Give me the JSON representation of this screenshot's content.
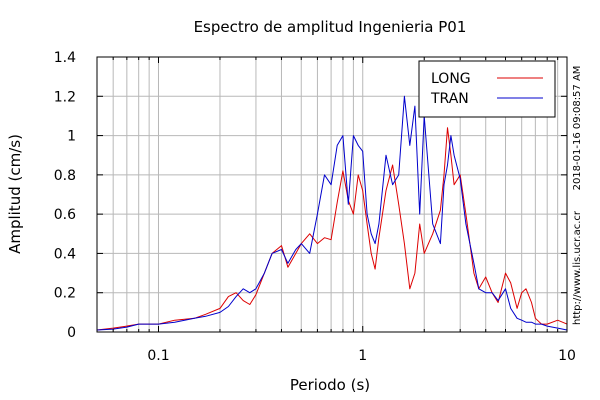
{
  "chart_data": {
    "type": "line",
    "title": "Espectro de amplitud Ingenieria P01",
    "xlabel": "Periodo (s)",
    "ylabel": "Amplitud (cm/s)",
    "xscale": "log",
    "xlim": [
      0.05,
      10
    ],
    "ylim": [
      0,
      1.4
    ],
    "xticks": [
      {
        "v": 0.1,
        "label": "0.1"
      },
      {
        "v": 1,
        "label": "1"
      },
      {
        "v": 10,
        "label": "10"
      }
    ],
    "yticks": [
      {
        "v": 0,
        "label": "0"
      },
      {
        "v": 0.2,
        "label": "0.2"
      },
      {
        "v": 0.4,
        "label": "0.4"
      },
      {
        "v": 0.6,
        "label": "0.6"
      },
      {
        "v": 0.8,
        "label": "0.8"
      },
      {
        "v": 1.0,
        "label": "1"
      },
      {
        "v": 1.2,
        "label": "1.2"
      },
      {
        "v": 1.4,
        "label": "1.4"
      }
    ],
    "grid": true,
    "legend_position": "top-right",
    "series": [
      {
        "name": "LONG",
        "color": "#dd0000",
        "x": [
          0.05,
          0.06,
          0.07,
          0.08,
          0.1,
          0.12,
          0.15,
          0.17,
          0.2,
          0.22,
          0.24,
          0.26,
          0.28,
          0.3,
          0.33,
          0.36,
          0.4,
          0.43,
          0.47,
          0.5,
          0.55,
          0.6,
          0.65,
          0.7,
          0.75,
          0.8,
          0.85,
          0.9,
          0.95,
          1.0,
          1.05,
          1.1,
          1.15,
          1.2,
          1.3,
          1.4,
          1.5,
          1.6,
          1.7,
          1.8,
          1.9,
          2.0,
          2.2,
          2.4,
          2.5,
          2.6,
          2.7,
          2.8,
          3.0,
          3.2,
          3.5,
          3.7,
          4.0,
          4.3,
          4.6,
          5.0,
          5.3,
          5.7,
          6.0,
          6.3,
          6.7,
          7.0,
          7.5,
          8.0,
          9.0,
          10.0
        ],
        "y": [
          0.01,
          0.02,
          0.03,
          0.04,
          0.04,
          0.06,
          0.07,
          0.09,
          0.12,
          0.18,
          0.2,
          0.16,
          0.14,
          0.19,
          0.3,
          0.4,
          0.44,
          0.33,
          0.4,
          0.45,
          0.5,
          0.45,
          0.48,
          0.47,
          0.66,
          0.82,
          0.67,
          0.6,
          0.8,
          0.72,
          0.55,
          0.4,
          0.32,
          0.48,
          0.72,
          0.85,
          0.65,
          0.45,
          0.22,
          0.3,
          0.55,
          0.4,
          0.5,
          0.62,
          0.8,
          1.04,
          0.9,
          0.75,
          0.8,
          0.6,
          0.3,
          0.22,
          0.28,
          0.2,
          0.15,
          0.3,
          0.25,
          0.12,
          0.2,
          0.22,
          0.15,
          0.07,
          0.04,
          0.04,
          0.06,
          0.04
        ]
      },
      {
        "name": "TRAN",
        "color": "#0000cc",
        "x": [
          0.05,
          0.06,
          0.07,
          0.08,
          0.1,
          0.12,
          0.15,
          0.17,
          0.2,
          0.22,
          0.24,
          0.26,
          0.28,
          0.3,
          0.33,
          0.36,
          0.4,
          0.43,
          0.47,
          0.5,
          0.55,
          0.6,
          0.65,
          0.7,
          0.75,
          0.8,
          0.85,
          0.9,
          0.95,
          1.0,
          1.05,
          1.1,
          1.15,
          1.2,
          1.3,
          1.4,
          1.5,
          1.6,
          1.7,
          1.8,
          1.9,
          2.0,
          2.2,
          2.4,
          2.5,
          2.6,
          2.7,
          2.8,
          3.0,
          3.2,
          3.5,
          3.7,
          4.0,
          4.3,
          4.6,
          5.0,
          5.3,
          5.7,
          6.0,
          6.3,
          6.7,
          7.0,
          7.5,
          8.0,
          9.0,
          10.0
        ],
        "y": [
          0.01,
          0.015,
          0.025,
          0.04,
          0.04,
          0.05,
          0.07,
          0.08,
          0.1,
          0.13,
          0.18,
          0.22,
          0.2,
          0.22,
          0.3,
          0.4,
          0.42,
          0.35,
          0.42,
          0.45,
          0.4,
          0.6,
          0.8,
          0.75,
          0.95,
          1.0,
          0.65,
          1.0,
          0.95,
          0.92,
          0.6,
          0.5,
          0.45,
          0.55,
          0.9,
          0.75,
          0.8,
          1.2,
          0.95,
          1.15,
          0.6,
          1.1,
          0.55,
          0.45,
          0.75,
          0.85,
          1.0,
          0.9,
          0.78,
          0.55,
          0.35,
          0.22,
          0.2,
          0.2,
          0.16,
          0.22,
          0.12,
          0.07,
          0.06,
          0.05,
          0.05,
          0.04,
          0.04,
          0.03,
          0.02,
          0.01
        ]
      }
    ],
    "side_note": "2018-01-16 09:08:57 AM",
    "side_url": "http://www.lis.ucr.ac.cr"
  }
}
